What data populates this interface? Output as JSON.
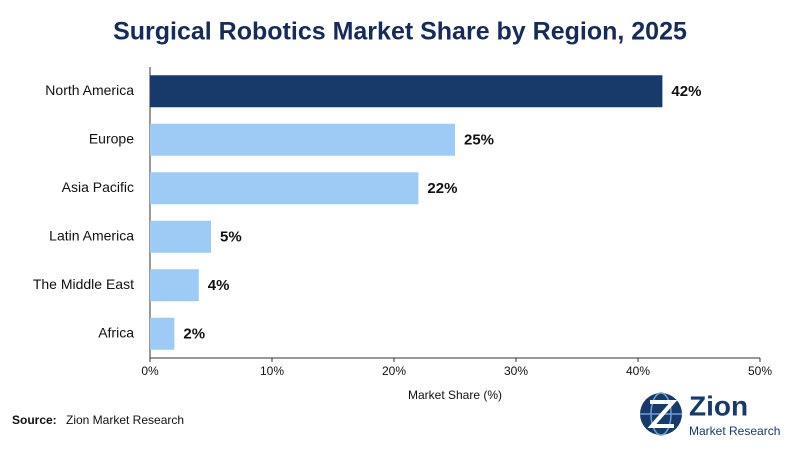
{
  "chart_data": {
    "type": "hbar",
    "title": "Surgical Robotics Market Share by Region, 2025",
    "categories": [
      "North America",
      "Europe",
      "Asia Pacific",
      "Latin America",
      "The Middle East",
      "Africa"
    ],
    "values": [
      42,
      25,
      22,
      5,
      4,
      2
    ],
    "value_labels": [
      "42%",
      "25%",
      "22%",
      "5%",
      "4%",
      "2%"
    ],
    "colors": [
      "#173a6b",
      "#9ecbf6",
      "#9ecbf6",
      "#9ecbf6",
      "#9ecbf6",
      "#9ecbf6"
    ],
    "xlabel": "Market Share (%)",
    "xlim": [
      0,
      50
    ],
    "xticks": [
      {
        "value": 0,
        "label": "0%"
      },
      {
        "value": 10,
        "label": "10%"
      },
      {
        "value": 20,
        "label": "20%"
      },
      {
        "value": 30,
        "label": "30%"
      },
      {
        "value": 40,
        "label": "40%"
      },
      {
        "value": 50,
        "label": "50%"
      }
    ],
    "grid": false,
    "source_label": "Source:",
    "source": "Zion Market Research",
    "logo": {
      "name": "Zion",
      "tagline": "Market Research"
    }
  }
}
